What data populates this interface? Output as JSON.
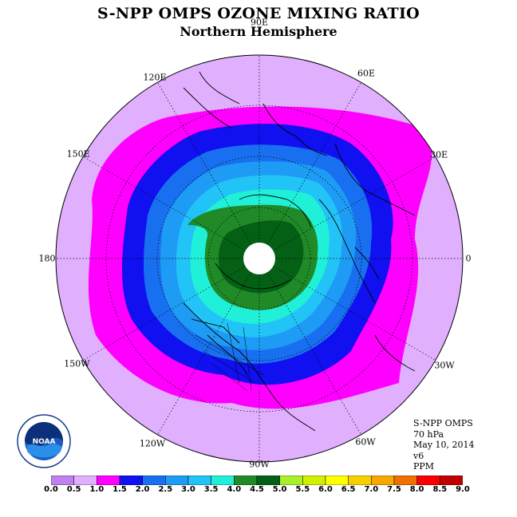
{
  "title": "S-NPP OMPS OZONE MIXING RATIO",
  "subtitle": "Northern Hemisphere",
  "longitude_labels": [
    "90E",
    "60E",
    "30E",
    "0",
    "30W",
    "60W",
    "90W",
    "120W",
    "150W",
    "180",
    "150E",
    "120E"
  ],
  "info": {
    "instrument": "S-NPP OMPS",
    "level": "70 hPa",
    "date": "May 10, 2014",
    "version": "v6",
    "units": "PPM"
  },
  "logo_text": "NOAA",
  "colorbar": {
    "ticks": [
      "0.0",
      "0.5",
      "1.0",
      "1.5",
      "2.0",
      "2.5",
      "3.0",
      "3.5",
      "4.0",
      "4.5",
      "5.0",
      "5.5",
      "6.0",
      "6.5",
      "7.0",
      "7.5",
      "8.0",
      "8.5",
      "9.0"
    ],
    "colors": [
      "#c080f0",
      "#e0b0ff",
      "#ff00ff",
      "#1010f0",
      "#1870f0",
      "#1e9cf5",
      "#22c4f7",
      "#20f0d8",
      "#208a28",
      "#046014",
      "#a8f028",
      "#d0f000",
      "#ffff00",
      "#f8d000",
      "#f8a800",
      "#f07000",
      "#f80000",
      "#c00000",
      "#885030"
    ]
  },
  "field_bands": [
    {
      "value_range": "0.5-1.0",
      "color": "#e0b0ff"
    },
    {
      "value_range": "1.0-1.5",
      "color": "#ff00ff"
    },
    {
      "value_range": "1.5-2.0",
      "color": "#1010f0"
    },
    {
      "value_range": "2.0-2.5",
      "color": "#1870f0"
    },
    {
      "value_range": "2.5-3.0",
      "color": "#1e9cf5"
    },
    {
      "value_range": "3.0-3.5",
      "color": "#22c4f7"
    },
    {
      "value_range": "3.5-4.0",
      "color": "#20f0d8"
    },
    {
      "value_range": "4.0-4.5",
      "color": "#208a28"
    },
    {
      "value_range": "4.5-5.0",
      "color": "#046014"
    }
  ]
}
